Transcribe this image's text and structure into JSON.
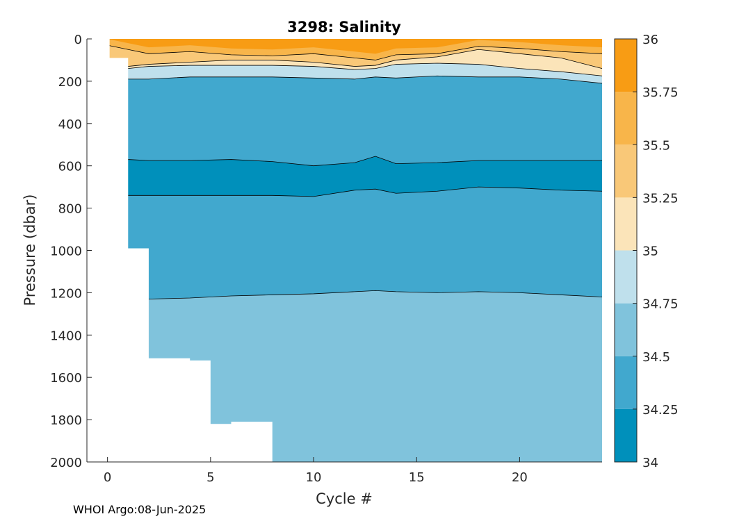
{
  "chart_data": {
    "type": "heatmap",
    "title": "3298:  Salinity",
    "xlabel": "Cycle #",
    "ylabel": "Pressure (dbar)",
    "xlim": [
      -1,
      24
    ],
    "ylim": [
      0,
      2000
    ],
    "y_reversed": true,
    "x_ticks": [
      0,
      5,
      10,
      15,
      20
    ],
    "y_ticks": [
      0,
      200,
      400,
      600,
      800,
      1000,
      1200,
      1400,
      1600,
      1800,
      2000
    ],
    "colorbar": {
      "levels": [
        34,
        34.25,
        34.5,
        34.75,
        35,
        35.25,
        35.5,
        35.75,
        36
      ],
      "tick_labels": [
        "34",
        "34.25",
        "34.5",
        "34.75",
        "35",
        "35.25",
        "35.5",
        "35.75",
        "36"
      ],
      "colors": [
        "#0090bb",
        "#41a8ce",
        "#80c3dc",
        "#bfe0ec",
        "#fbe4b9",
        "#f9c878",
        "#f8b54a",
        "#f89c14"
      ]
    },
    "profile_max_pressure": [
      {
        "cycle": 0,
        "max_pressure": 90
      },
      {
        "cycle": 1,
        "max_pressure": 990
      },
      {
        "cycle": 2,
        "max_pressure": 1510
      },
      {
        "cycle": 3,
        "max_pressure": 1510
      },
      {
        "cycle": 4,
        "max_pressure": 1520
      },
      {
        "cycle": 5,
        "max_pressure": 1820
      },
      {
        "cycle": 6,
        "max_pressure": 1810
      },
      {
        "cycle": 7,
        "max_pressure": 1810
      },
      {
        "cycle": 8,
        "max_pressure": 2000
      },
      {
        "cycle": 24,
        "max_pressure": 2000
      }
    ],
    "contour_depths": {
      "cycles": [
        0,
        1,
        2,
        4,
        6,
        8,
        10,
        12,
        13,
        14,
        16,
        18,
        20,
        22,
        24
      ],
      "s35_25": [
        30,
        50,
        70,
        60,
        75,
        80,
        70,
        90,
        100,
        75,
        70,
        35,
        45,
        60,
        70
      ],
      "s35": [
        90,
        130,
        120,
        110,
        100,
        100,
        110,
        130,
        125,
        100,
        85,
        50,
        70,
        90,
        140
      ],
      "s34_75": [
        100,
        140,
        130,
        125,
        125,
        125,
        130,
        145,
        140,
        120,
        115,
        120,
        140,
        155,
        175
      ],
      "s34_5": [
        105,
        190,
        190,
        180,
        180,
        180,
        185,
        190,
        180,
        185,
        175,
        180,
        180,
        190,
        210
      ],
      "core_top": [
        580,
        570,
        575,
        575,
        570,
        580,
        600,
        585,
        555,
        590,
        585,
        575,
        575,
        575,
        575
      ],
      "core_bottom": [
        740,
        740,
        740,
        740,
        740,
        740,
        745,
        715,
        710,
        730,
        720,
        700,
        705,
        715,
        720
      ],
      "s34_75_deep": [
        1220,
        1230,
        1230,
        1225,
        1215,
        1210,
        1205,
        1195,
        1190,
        1195,
        1200,
        1195,
        1200,
        1210,
        1220
      ]
    }
  },
  "footer": {
    "text": "WHOI Argo:08-Jun-2025"
  }
}
